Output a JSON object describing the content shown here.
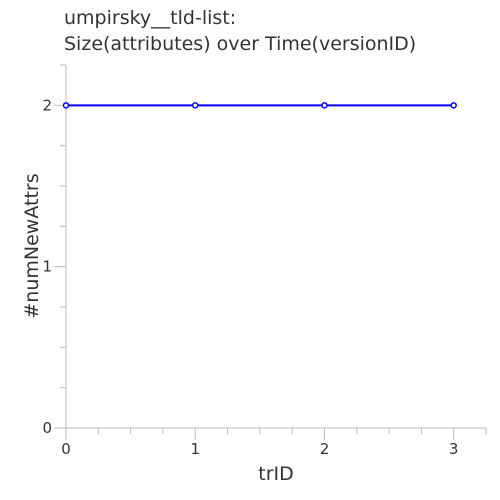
{
  "chart_data": {
    "type": "line",
    "title": [
      "umpirsky__tld-list:",
      "Size(attributes) over Time(versionID)"
    ],
    "xlabel": "trID",
    "ylabel": "#numNewAttrs",
    "x": [
      0,
      1,
      2,
      3
    ],
    "series": [
      {
        "values": [
          2,
          2,
          2,
          2
        ],
        "color": "#0000ff"
      }
    ],
    "xlim": [
      0,
      3.25
    ],
    "ylim": [
      0,
      2.25
    ],
    "x_major_ticks": [
      0,
      1,
      2,
      3
    ],
    "x_minor_step": 0.25,
    "y_major_ticks": [
      0,
      1,
      2
    ],
    "y_minor_step": 0.25,
    "grid": false,
    "axis_color": "#bbbbbb",
    "text_color": "#333333"
  }
}
